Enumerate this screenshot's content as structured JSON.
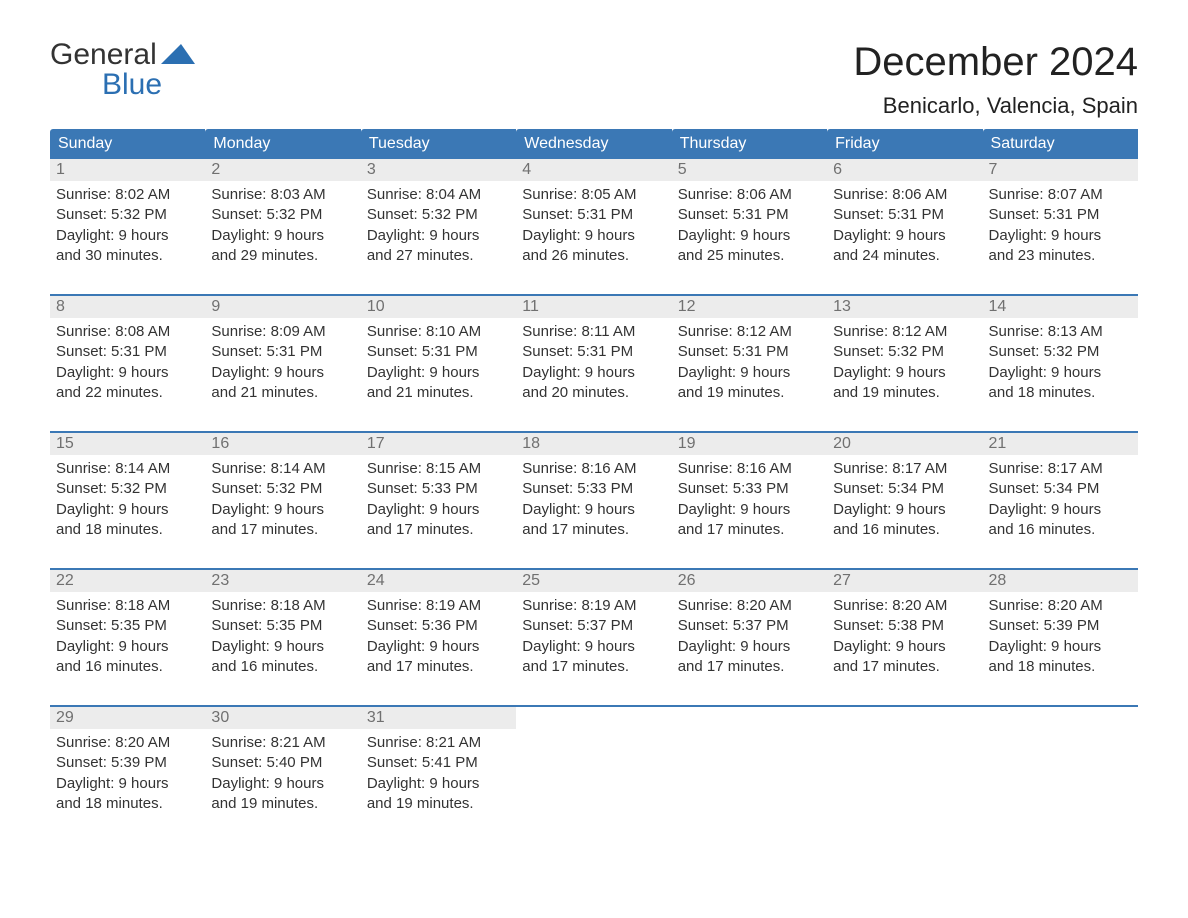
{
  "logo": {
    "word1": "General",
    "word2": "Blue",
    "accent_color": "#2b6fb2"
  },
  "title": "December 2024",
  "location": "Benicarlo, Valencia, Spain",
  "day_headers": [
    "Sunday",
    "Monday",
    "Tuesday",
    "Wednesday",
    "Thursday",
    "Friday",
    "Saturday"
  ],
  "colors": {
    "header_bg": "#3b78b5",
    "header_text": "#ffffff",
    "daynum_bg": "#ececec",
    "daynum_text": "#707070",
    "body_text": "#333333",
    "week_rule": "#3b78b5",
    "page_bg": "#ffffff"
  },
  "weeks": [
    [
      {
        "n": "1",
        "sr": "Sunrise: 8:02 AM",
        "ss": "Sunset: 5:32 PM",
        "dl1": "Daylight: 9 hours",
        "dl2": "and 30 minutes."
      },
      {
        "n": "2",
        "sr": "Sunrise: 8:03 AM",
        "ss": "Sunset: 5:32 PM",
        "dl1": "Daylight: 9 hours",
        "dl2": "and 29 minutes."
      },
      {
        "n": "3",
        "sr": "Sunrise: 8:04 AM",
        "ss": "Sunset: 5:32 PM",
        "dl1": "Daylight: 9 hours",
        "dl2": "and 27 minutes."
      },
      {
        "n": "4",
        "sr": "Sunrise: 8:05 AM",
        "ss": "Sunset: 5:31 PM",
        "dl1": "Daylight: 9 hours",
        "dl2": "and 26 minutes."
      },
      {
        "n": "5",
        "sr": "Sunrise: 8:06 AM",
        "ss": "Sunset: 5:31 PM",
        "dl1": "Daylight: 9 hours",
        "dl2": "and 25 minutes."
      },
      {
        "n": "6",
        "sr": "Sunrise: 8:06 AM",
        "ss": "Sunset: 5:31 PM",
        "dl1": "Daylight: 9 hours",
        "dl2": "and 24 minutes."
      },
      {
        "n": "7",
        "sr": "Sunrise: 8:07 AM",
        "ss": "Sunset: 5:31 PM",
        "dl1": "Daylight: 9 hours",
        "dl2": "and 23 minutes."
      }
    ],
    [
      {
        "n": "8",
        "sr": "Sunrise: 8:08 AM",
        "ss": "Sunset: 5:31 PM",
        "dl1": "Daylight: 9 hours",
        "dl2": "and 22 minutes."
      },
      {
        "n": "9",
        "sr": "Sunrise: 8:09 AM",
        "ss": "Sunset: 5:31 PM",
        "dl1": "Daylight: 9 hours",
        "dl2": "and 21 minutes."
      },
      {
        "n": "10",
        "sr": "Sunrise: 8:10 AM",
        "ss": "Sunset: 5:31 PM",
        "dl1": "Daylight: 9 hours",
        "dl2": "and 21 minutes."
      },
      {
        "n": "11",
        "sr": "Sunrise: 8:11 AM",
        "ss": "Sunset: 5:31 PM",
        "dl1": "Daylight: 9 hours",
        "dl2": "and 20 minutes."
      },
      {
        "n": "12",
        "sr": "Sunrise: 8:12 AM",
        "ss": "Sunset: 5:31 PM",
        "dl1": "Daylight: 9 hours",
        "dl2": "and 19 minutes."
      },
      {
        "n": "13",
        "sr": "Sunrise: 8:12 AM",
        "ss": "Sunset: 5:32 PM",
        "dl1": "Daylight: 9 hours",
        "dl2": "and 19 minutes."
      },
      {
        "n": "14",
        "sr": "Sunrise: 8:13 AM",
        "ss": "Sunset: 5:32 PM",
        "dl1": "Daylight: 9 hours",
        "dl2": "and 18 minutes."
      }
    ],
    [
      {
        "n": "15",
        "sr": "Sunrise: 8:14 AM",
        "ss": "Sunset: 5:32 PM",
        "dl1": "Daylight: 9 hours",
        "dl2": "and 18 minutes."
      },
      {
        "n": "16",
        "sr": "Sunrise: 8:14 AM",
        "ss": "Sunset: 5:32 PM",
        "dl1": "Daylight: 9 hours",
        "dl2": "and 17 minutes."
      },
      {
        "n": "17",
        "sr": "Sunrise: 8:15 AM",
        "ss": "Sunset: 5:33 PM",
        "dl1": "Daylight: 9 hours",
        "dl2": "and 17 minutes."
      },
      {
        "n": "18",
        "sr": "Sunrise: 8:16 AM",
        "ss": "Sunset: 5:33 PM",
        "dl1": "Daylight: 9 hours",
        "dl2": "and 17 minutes."
      },
      {
        "n": "19",
        "sr": "Sunrise: 8:16 AM",
        "ss": "Sunset: 5:33 PM",
        "dl1": "Daylight: 9 hours",
        "dl2": "and 17 minutes."
      },
      {
        "n": "20",
        "sr": "Sunrise: 8:17 AM",
        "ss": "Sunset: 5:34 PM",
        "dl1": "Daylight: 9 hours",
        "dl2": "and 16 minutes."
      },
      {
        "n": "21",
        "sr": "Sunrise: 8:17 AM",
        "ss": "Sunset: 5:34 PM",
        "dl1": "Daylight: 9 hours",
        "dl2": "and 16 minutes."
      }
    ],
    [
      {
        "n": "22",
        "sr": "Sunrise: 8:18 AM",
        "ss": "Sunset: 5:35 PM",
        "dl1": "Daylight: 9 hours",
        "dl2": "and 16 minutes."
      },
      {
        "n": "23",
        "sr": "Sunrise: 8:18 AM",
        "ss": "Sunset: 5:35 PM",
        "dl1": "Daylight: 9 hours",
        "dl2": "and 16 minutes."
      },
      {
        "n": "24",
        "sr": "Sunrise: 8:19 AM",
        "ss": "Sunset: 5:36 PM",
        "dl1": "Daylight: 9 hours",
        "dl2": "and 17 minutes."
      },
      {
        "n": "25",
        "sr": "Sunrise: 8:19 AM",
        "ss": "Sunset: 5:37 PM",
        "dl1": "Daylight: 9 hours",
        "dl2": "and 17 minutes."
      },
      {
        "n": "26",
        "sr": "Sunrise: 8:20 AM",
        "ss": "Sunset: 5:37 PM",
        "dl1": "Daylight: 9 hours",
        "dl2": "and 17 minutes."
      },
      {
        "n": "27",
        "sr": "Sunrise: 8:20 AM",
        "ss": "Sunset: 5:38 PM",
        "dl1": "Daylight: 9 hours",
        "dl2": "and 17 minutes."
      },
      {
        "n": "28",
        "sr": "Sunrise: 8:20 AM",
        "ss": "Sunset: 5:39 PM",
        "dl1": "Daylight: 9 hours",
        "dl2": "and 18 minutes."
      }
    ],
    [
      {
        "n": "29",
        "sr": "Sunrise: 8:20 AM",
        "ss": "Sunset: 5:39 PM",
        "dl1": "Daylight: 9 hours",
        "dl2": "and 18 minutes."
      },
      {
        "n": "30",
        "sr": "Sunrise: 8:21 AM",
        "ss": "Sunset: 5:40 PM",
        "dl1": "Daylight: 9 hours",
        "dl2": "and 19 minutes."
      },
      {
        "n": "31",
        "sr": "Sunrise: 8:21 AM",
        "ss": "Sunset: 5:41 PM",
        "dl1": "Daylight: 9 hours",
        "dl2": "and 19 minutes."
      },
      null,
      null,
      null,
      null
    ]
  ]
}
